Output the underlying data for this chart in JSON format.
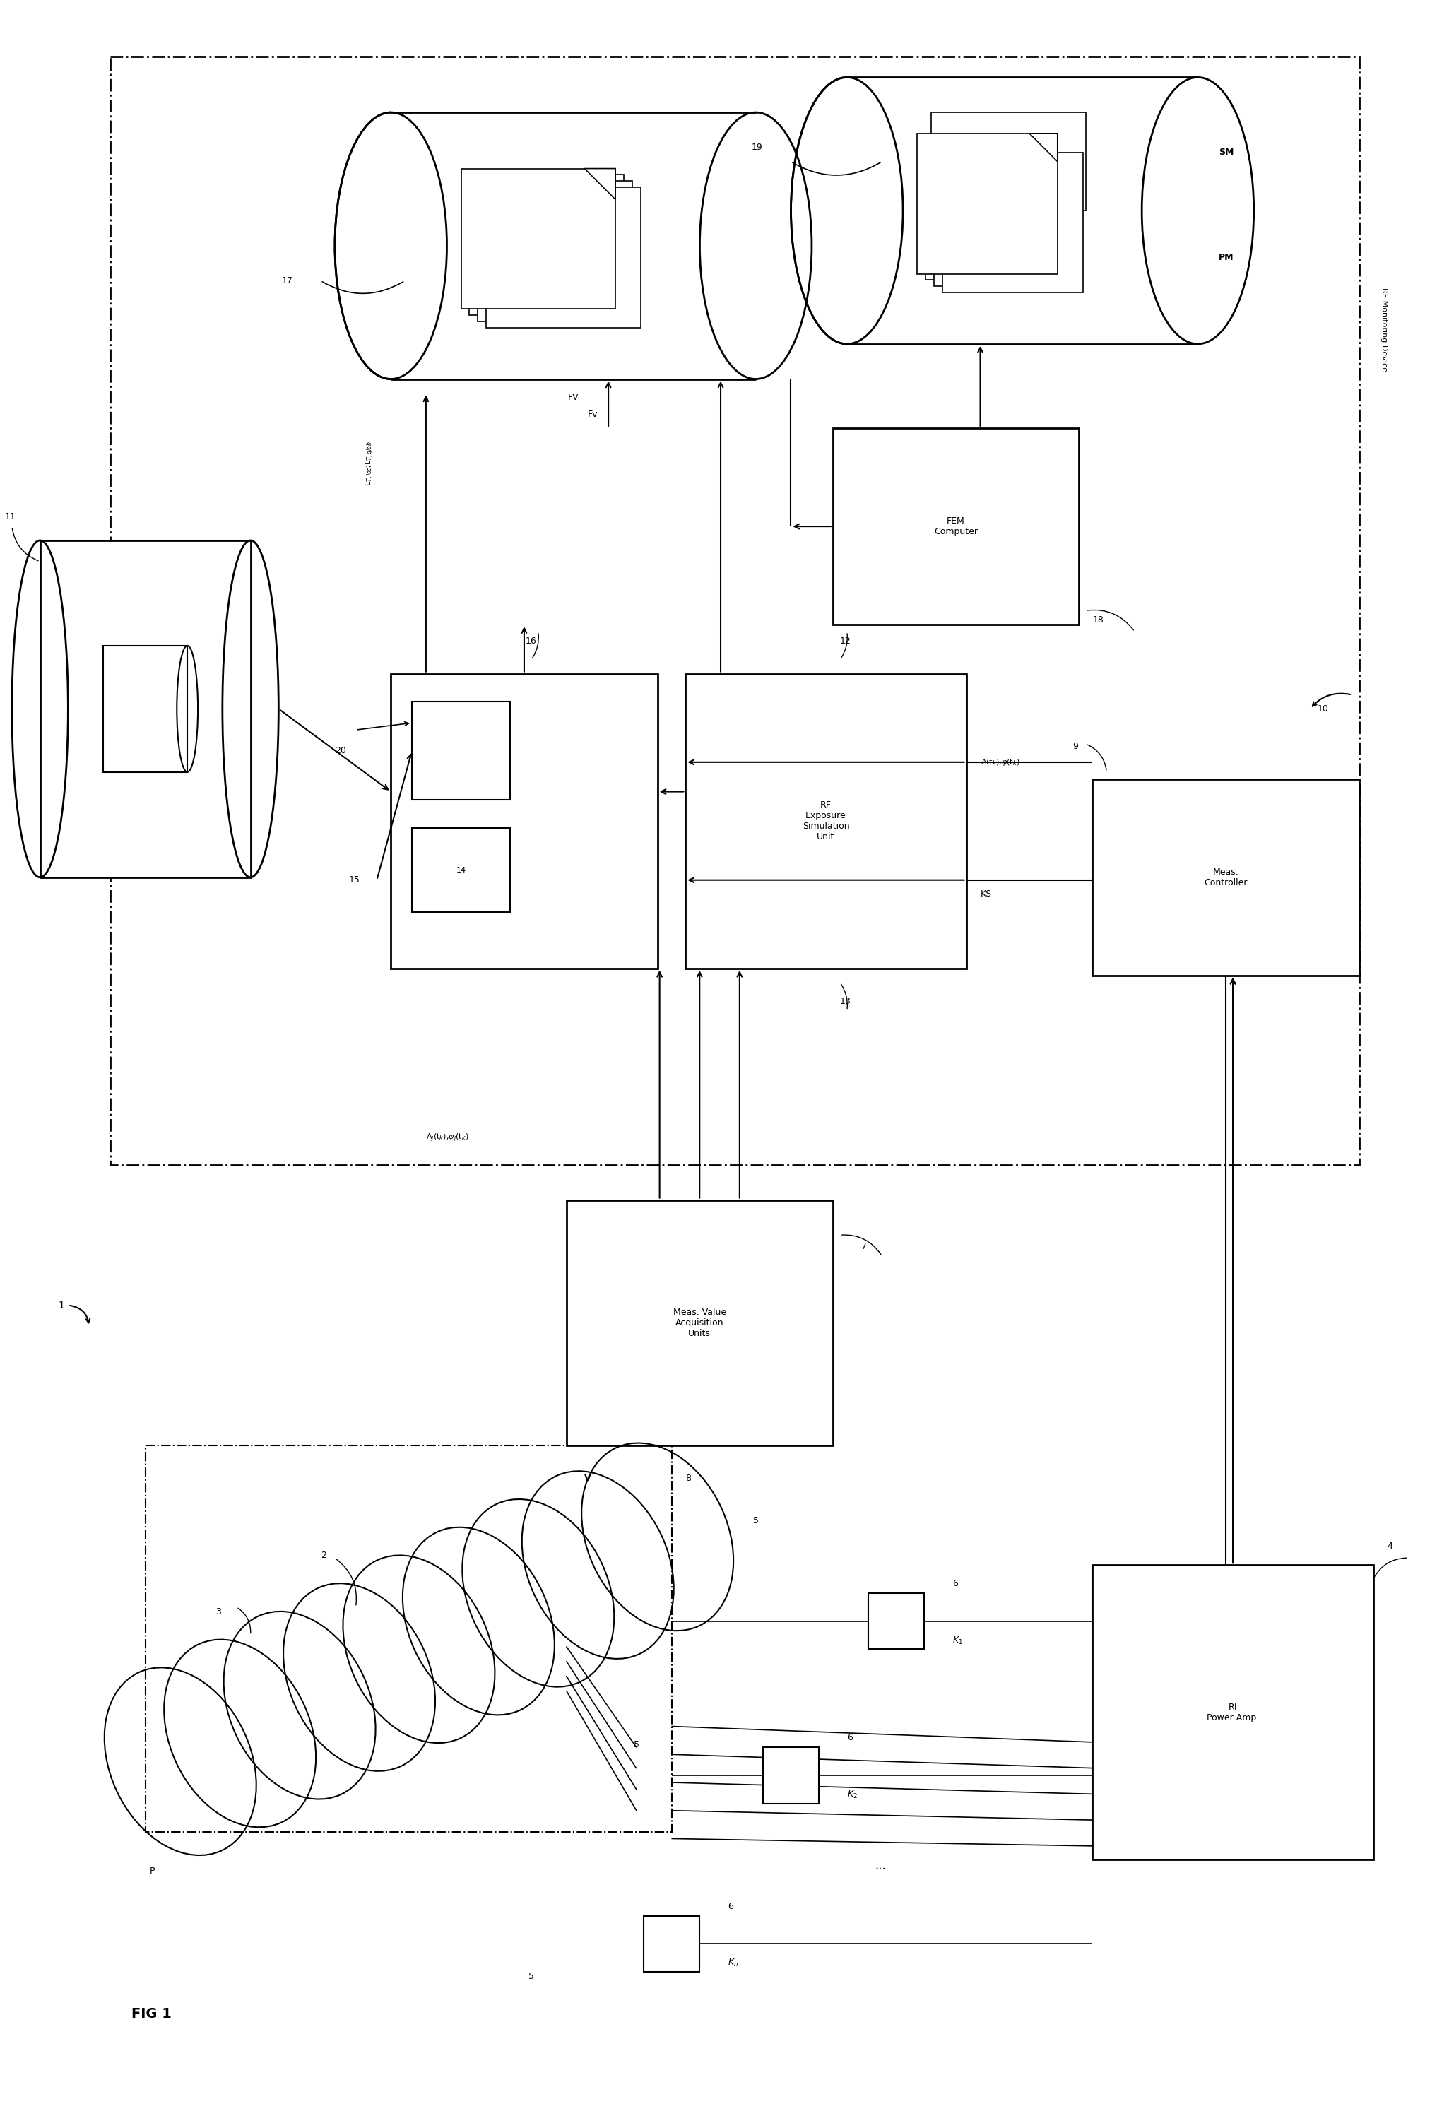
{
  "background_color": "#ffffff",
  "fig_width": 20.51,
  "fig_height": 29.88,
  "labels": {
    "SM": "SM",
    "PM": "PM",
    "19": "19",
    "17": "17",
    "FEM_Computer": "FEM\nComputer",
    "18": "18",
    "RF_Monitoring": "RF Monitoring Device",
    "10": "10",
    "LT_loc_glob": "L$_{T,loc}$;L$_{T,glob}$",
    "FV_label": "FV",
    "Fv": "Fv",
    "RF_Exposure": "RF\nExposure\nSimulation\nUnit",
    "16": "16",
    "20": "20",
    "14": "14",
    "15": "15",
    "12": "12",
    "13": "13",
    "A_tk": "A(t$_k$),$\\varphi$(t$_k$)",
    "KS": "KS",
    "9": "9",
    "Meas_Controller": "Meas.\nController",
    "11": "11",
    "Aj_tk": "A$_j$(t$_k$),$\\varphi_j$(t$_k$)",
    "V": "V",
    "8": "8",
    "Meas_Value": "Meas. Value\nAcquisition\nUnits",
    "7": "7",
    "5": "5",
    "6": "6",
    "K1": "K$_1$",
    "K2": "K$_2$",
    "Kn": "K$_n$",
    "4": "4",
    "Rf_Power": "Rf\nPower Amp.",
    "1": "1",
    "2": "2",
    "3": "3",
    "P": "P",
    "FIG1": "FIG 1"
  }
}
